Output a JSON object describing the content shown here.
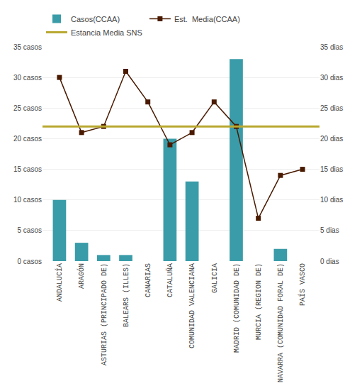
{
  "chart_data": {
    "type": "bar",
    "categories": [
      "ANDALUCÍA",
      "ARAGÓN",
      "ASTURIAS (PRINCIPADO DE)",
      "BALEARS (ILLES)",
      "CANARIAS",
      "CATALUÑA",
      "COMUNIDAD VALENCIANA",
      "GALICIA",
      "MADRID (COMUNIDAD DE)",
      "MURCIA (REGION DE)",
      "NAVARRA (COMUNIDAD FORAL DE)",
      "PAÍS VASCO"
    ],
    "series": [
      {
        "name": "Casos(CCAA)",
        "type": "bar",
        "color": "#3a9ca8",
        "values": [
          10,
          3,
          1,
          1,
          0,
          20,
          13,
          0,
          33,
          0,
          2,
          0
        ]
      },
      {
        "name": "Est.  Media(CCAA)",
        "type": "line",
        "marker": "square",
        "color": "#4a1a00",
        "axis": "y2",
        "values": [
          30,
          21,
          22,
          31,
          26,
          19,
          21,
          26,
          22,
          7,
          14,
          15
        ]
      },
      {
        "name": "Estancia Media SNS",
        "type": "hline",
        "color": "#b8a830",
        "axis": "y2",
        "value": 22
      }
    ],
    "ylim": [
      0,
      35
    ],
    "yticks": [
      {
        "value": 0,
        "label": "0 casos"
      },
      {
        "value": 5,
        "label": "5 casos"
      },
      {
        "value": 10,
        "label": "10 casos"
      },
      {
        "value": 15,
        "label": "15 casos"
      },
      {
        "value": 20,
        "label": "20 casos"
      },
      {
        "value": 25,
        "label": "25 casos"
      },
      {
        "value": 30,
        "label": "30 casos"
      },
      {
        "value": 35,
        "label": "35 casos"
      }
    ],
    "y2lim": [
      0,
      35
    ],
    "y2ticks": [
      {
        "value": 0,
        "label": "0 dias"
      },
      {
        "value": 5,
        "label": "5 dias"
      },
      {
        "value": 10,
        "label": "10 dias"
      },
      {
        "value": 15,
        "label": "15 dias"
      },
      {
        "value": 20,
        "label": "20 dias"
      },
      {
        "value": 25,
        "label": "25 dias"
      },
      {
        "value": 30,
        "label": "30 dias"
      },
      {
        "value": 35,
        "label": "35 dias"
      }
    ],
    "grid": true,
    "legend": "top"
  }
}
